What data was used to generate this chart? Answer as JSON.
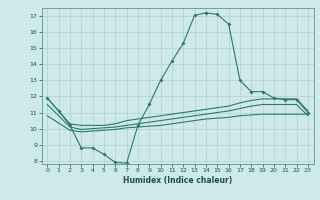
{
  "bg_color": "#cfe8e8",
  "grid_color": "#b0d0d0",
  "line_color": "#2a7a6a",
  "xlabel": "Humidex (Indice chaleur)",
  "ylim": [
    7.8,
    17.5
  ],
  "xlim": [
    -0.5,
    23.5
  ],
  "yticks": [
    8,
    9,
    10,
    11,
    12,
    13,
    14,
    15,
    16,
    17
  ],
  "xticks": [
    0,
    1,
    2,
    3,
    4,
    5,
    6,
    7,
    8,
    9,
    10,
    11,
    12,
    13,
    14,
    15,
    16,
    17,
    18,
    19,
    20,
    21,
    22,
    23
  ],
  "curve1_x": [
    0,
    1,
    2,
    3,
    4,
    5,
    6,
    7,
    8,
    9,
    10,
    11,
    12,
    13,
    14,
    15,
    16,
    17,
    18,
    19,
    20,
    21,
    22,
    23
  ],
  "curve1_y": [
    11.9,
    11.1,
    10.2,
    8.8,
    8.8,
    8.4,
    7.9,
    7.85,
    10.2,
    11.5,
    13.0,
    14.2,
    15.3,
    17.05,
    17.2,
    17.1,
    16.5,
    13.0,
    12.3,
    12.3,
    11.9,
    11.8,
    11.8,
    11.0
  ],
  "curve2_x": [
    0,
    2,
    3,
    4,
    5,
    6,
    7,
    8,
    9,
    10,
    11,
    12,
    13,
    14,
    15,
    16,
    17,
    18,
    19,
    20,
    21,
    22,
    23
  ],
  "curve2_y": [
    11.9,
    10.3,
    10.2,
    10.2,
    10.2,
    10.3,
    10.5,
    10.6,
    10.7,
    10.8,
    10.9,
    11.0,
    11.1,
    11.2,
    11.3,
    11.4,
    11.6,
    11.75,
    11.85,
    11.85,
    11.85,
    11.85,
    11.1
  ],
  "curve3_x": [
    0,
    2,
    3,
    4,
    5,
    6,
    7,
    8,
    9,
    10,
    11,
    12,
    13,
    14,
    15,
    16,
    17,
    18,
    19,
    20,
    21,
    22,
    23
  ],
  "curve3_y": [
    11.5,
    10.1,
    9.95,
    10.0,
    10.05,
    10.1,
    10.2,
    10.3,
    10.4,
    10.5,
    10.6,
    10.7,
    10.8,
    10.9,
    11.0,
    11.1,
    11.25,
    11.4,
    11.5,
    11.5,
    11.5,
    11.5,
    10.8
  ],
  "curve4_x": [
    0,
    2,
    3,
    4,
    5,
    6,
    7,
    8,
    9,
    10,
    11,
    12,
    13,
    14,
    15,
    16,
    17,
    18,
    19,
    20,
    21,
    22,
    23
  ],
  "curve4_y": [
    10.8,
    9.9,
    9.8,
    9.85,
    9.9,
    9.95,
    10.05,
    10.1,
    10.15,
    10.2,
    10.3,
    10.4,
    10.5,
    10.6,
    10.65,
    10.7,
    10.8,
    10.85,
    10.9,
    10.9,
    10.9,
    10.9,
    10.9
  ]
}
